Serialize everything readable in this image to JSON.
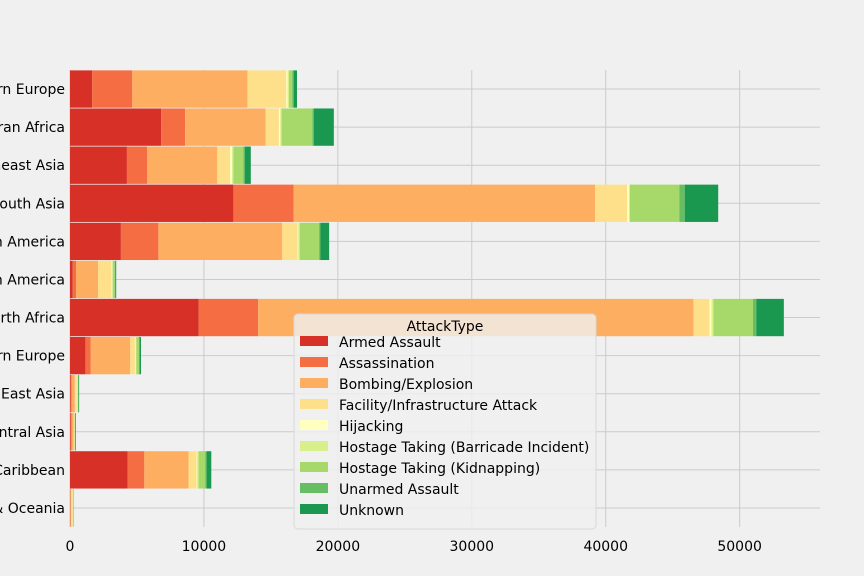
{
  "chart_data": {
    "type": "bar",
    "orientation": "horizontal",
    "stacked": true,
    "title": "",
    "xlabel": "",
    "ylabel": "",
    "xlim": [
      0,
      56000
    ],
    "xticks": [
      0,
      10000,
      20000,
      30000,
      40000,
      50000
    ],
    "grid": true,
    "categories": [
      "Western Europe",
      "Sub-Saharan Africa",
      "Southeast Asia",
      "South Asia",
      "South America",
      "North America",
      "Middle East & North Africa",
      "Eastern Europe",
      "East Asia",
      "Central Asia",
      "Central America & Caribbean",
      "Australasia & Oceania"
    ],
    "legend": {
      "title": "AttackType",
      "placement": "center-bottom"
    },
    "series": [
      {
        "name": "Armed Assault",
        "color": "#d73027",
        "values": [
          1650,
          6800,
          4250,
          12200,
          3800,
          200,
          9600,
          1150,
          50,
          50,
          4300,
          20
        ]
      },
      {
        "name": "Assassination",
        "color": "#f46d43",
        "values": [
          3000,
          1800,
          1500,
          4500,
          2800,
          250,
          4450,
          400,
          60,
          80,
          1250,
          20
        ]
      },
      {
        "name": "Bombing/Explosion",
        "color": "#fdae61",
        "values": [
          8600,
          6000,
          5250,
          22500,
          9250,
          1650,
          32500,
          2950,
          250,
          150,
          3300,
          40
        ]
      },
      {
        "name": "Facility/Infrastructure Attack",
        "color": "#fee08b",
        "values": [
          2900,
          1000,
          950,
          2400,
          1150,
          1000,
          1200,
          350,
          150,
          50,
          600,
          120
        ]
      },
      {
        "name": "Hijacking",
        "color": "#ffffbf",
        "values": [
          100,
          100,
          150,
          150,
          50,
          50,
          150,
          50,
          50,
          10,
          50,
          10
        ]
      },
      {
        "name": "Hostage Taking (Barricade Incident)",
        "color": "#d9ef8b",
        "values": [
          100,
          100,
          100,
          50,
          100,
          50,
          150,
          50,
          10,
          10,
          100,
          10
        ]
      },
      {
        "name": "Hostage Taking (Kidnapping)",
        "color": "#a6d96a",
        "values": [
          250,
          2300,
          750,
          3700,
          1450,
          150,
          2950,
          200,
          50,
          30,
          500,
          10
        ]
      },
      {
        "name": "Unarmed Assault",
        "color": "#66bd63",
        "values": [
          100,
          100,
          100,
          400,
          100,
          50,
          250,
          50,
          10,
          10,
          100,
          10
        ]
      },
      {
        "name": "Unknown",
        "color": "#1a9850",
        "values": [
          250,
          1500,
          450,
          2500,
          650,
          50,
          2050,
          100,
          50,
          50,
          350,
          20
        ]
      }
    ]
  }
}
